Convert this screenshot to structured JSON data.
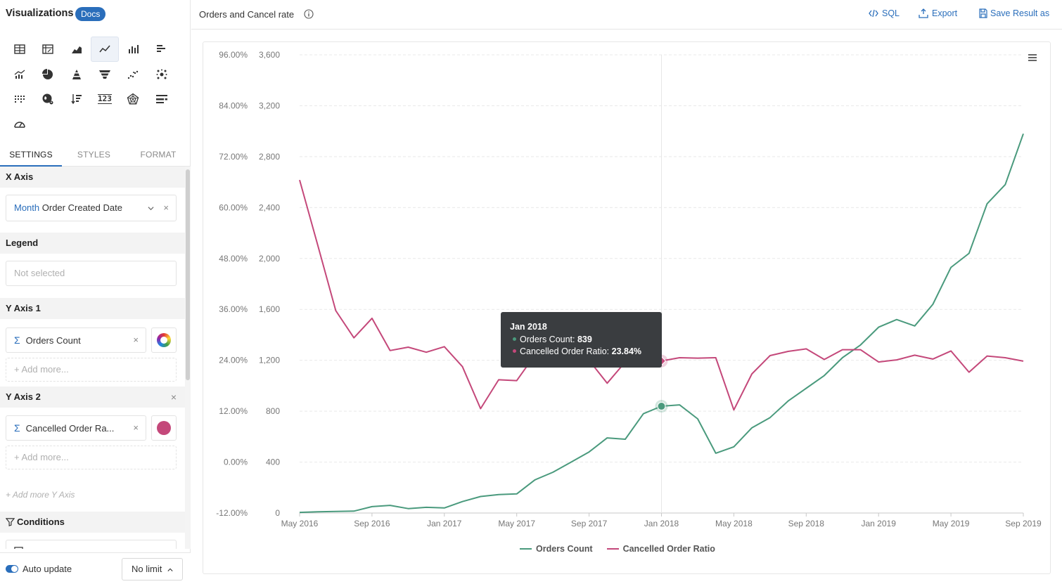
{
  "left_panel": {
    "title": "Visualizations",
    "docs_label": "Docs",
    "viz_icons": [
      "table-icon",
      "pivot-table-icon",
      "area-chart-icon",
      "line-chart-icon",
      "bar-chart-icon",
      "horizontal-bar-icon",
      "combo-chart-icon",
      "pie-chart-icon",
      "pyramid-icon",
      "funnel-icon",
      "scatter-icon",
      "bubble-icon",
      "heatmap-icon",
      "geo-map-icon",
      "sorted-bar-icon",
      "metric-kpi-icon",
      "radar-icon",
      "bullet-icon",
      "gauge-icon"
    ],
    "active_viz": "line-chart-icon",
    "metric_text": "123",
    "tabs": [
      "SETTINGS",
      "STYLES",
      "FORMAT"
    ],
    "x_axis": {
      "header": "X Axis",
      "granularity": "Month",
      "field": "Order Created Date"
    },
    "legend": {
      "header": "Legend",
      "placeholder": "Not selected"
    },
    "y_axis_1": {
      "header": "Y Axis 1",
      "field": "Orders Count",
      "add_more": "+ Add more..."
    },
    "y_axis_2": {
      "header": "Y Axis 2",
      "field": "Cancelled Order Ra...",
      "add_more": "+ Add more..."
    },
    "add_more_y_axis": "+ Add more Y Axis",
    "conditions": {
      "header": "Conditions"
    },
    "auto_update_label": "Auto update",
    "limit_label": "No limit",
    "colors": {
      "accent": "#2a6ebb",
      "series1": "#4a9a7d",
      "series2": "#c4487a"
    }
  },
  "topbar": {
    "title": "Orders and Cancel rate",
    "actions": {
      "sql": "SQL",
      "export": "Export",
      "save": "Save Result as"
    }
  },
  "tooltip": {
    "title": "Jan 2018",
    "row1_label": "Orders Count: ",
    "row1_value": "839",
    "row2_label": "Cancelled Order Ratio: ",
    "row2_value": "23.84%"
  },
  "chart_data": {
    "type": "line",
    "x": [
      "May 2016",
      "Jun 2016",
      "Jul 2016",
      "Aug 2016",
      "Sep 2016",
      "Oct 2016",
      "Nov 2016",
      "Dec 2016",
      "Jan 2017",
      "Feb 2017",
      "Mar 2017",
      "Apr 2017",
      "May 2017",
      "Jun 2017",
      "Jul 2017",
      "Aug 2017",
      "Sep 2017",
      "Oct 2017",
      "Nov 2017",
      "Dec 2017",
      "Jan 2018",
      "Feb 2018",
      "Mar 2018",
      "Apr 2018",
      "May 2018",
      "Jun 2018",
      "Jul 2018",
      "Aug 2018",
      "Sep 2018",
      "Oct 2018",
      "Nov 2018",
      "Dec 2018",
      "Jan 2019",
      "Feb 2019",
      "Mar 2019",
      "Apr 2019",
      "May 2019",
      "Jun 2019",
      "Jul 2019",
      "Aug 2019",
      "Sep 2019"
    ],
    "x_tick_labels": [
      "May 2016",
      "Sep 2016",
      "Jan 2017",
      "May 2017",
      "Sep 2017",
      "Jan 2018",
      "May 2018",
      "Sep 2018",
      "Jan 2019",
      "May 2019",
      "Sep 2019"
    ],
    "y_left_ticks": [
      "96.00%",
      "84.00%",
      "72.00%",
      "60.00%",
      "48.00%",
      "36.00%",
      "24.00%",
      "12.00%",
      "0.00%",
      "-12.00%"
    ],
    "y_right_ticks": [
      "3,600",
      "3,200",
      "2,800",
      "2,400",
      "2,000",
      "1,600",
      "1,200",
      "800",
      "400",
      "0"
    ],
    "series": [
      {
        "name": "Orders Count",
        "axis": "count",
        "ylim": [
          0,
          3600
        ],
        "values": [
          5,
          10,
          12,
          15,
          50,
          60,
          35,
          45,
          40,
          90,
          130,
          145,
          150,
          260,
          320,
          400,
          480,
          590,
          580,
          780,
          839,
          850,
          740,
          470,
          520,
          670,
          750,
          880,
          980,
          1080,
          1220,
          1320,
          1460,
          1520,
          1470,
          1640,
          1930,
          2040,
          2430,
          2580,
          2980
        ]
      },
      {
        "name": "Cancelled Order Ratio",
        "axis": "percent",
        "ylim": [
          -12,
          96
        ],
        "values": [
          66.5,
          51.2,
          35.7,
          29.3,
          33.9,
          26.3,
          27.1,
          25.9,
          27.2,
          22.5,
          12.6,
          19.4,
          19.2,
          25.2,
          24.7,
          24.7,
          24.0,
          18.6,
          23.6,
          23.6,
          23.84,
          24.6,
          24.5,
          24.6,
          12.3,
          20.8,
          25.1,
          26.1,
          26.7,
          24.2,
          26.5,
          26.5,
          23.6,
          24.1,
          25.2,
          24.3,
          26.2,
          21.2,
          25.0,
          24.6,
          23.8
        ]
      }
    ],
    "legend_position": "bottom",
    "grid": true,
    "highlight_index": 20
  }
}
